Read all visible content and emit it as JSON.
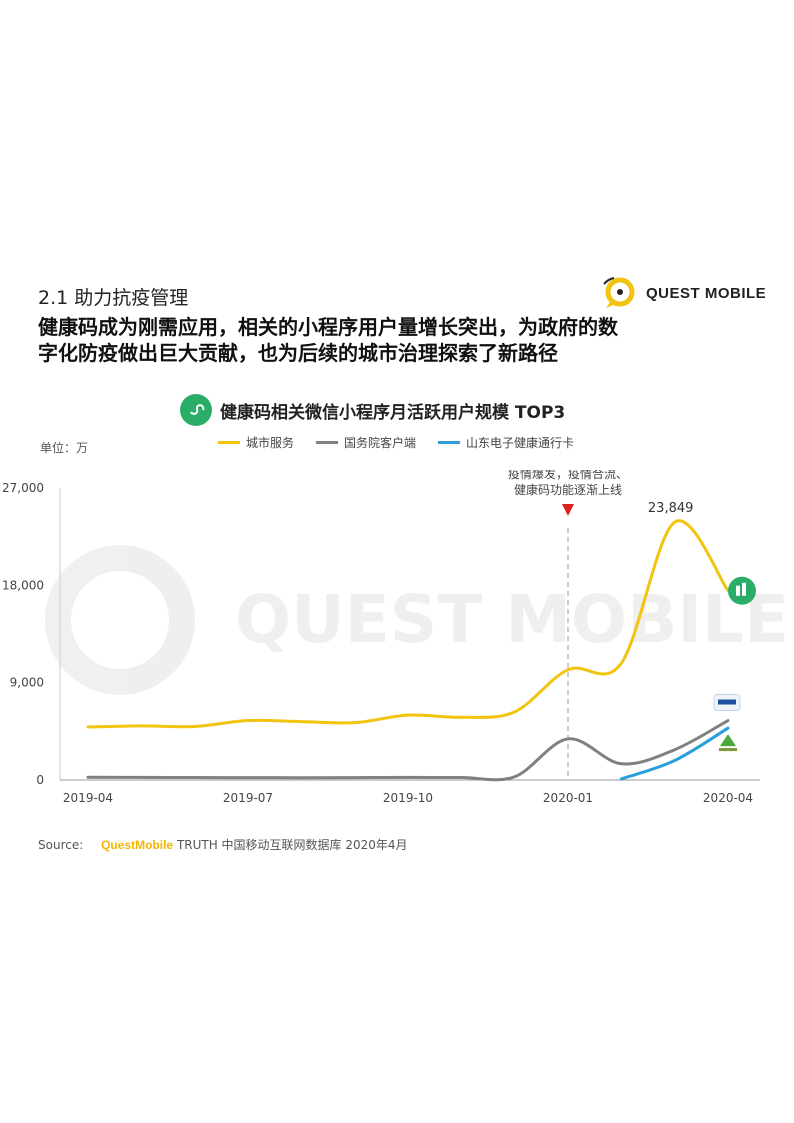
{
  "section_title": "2.1 助力抗疫管理",
  "headline": "健康码成为刚需应用，相关的小程序用户量增长突出，为政府的数字化防疫做出巨大贡献，也为后续的城市治理探索了新路径",
  "brand": {
    "name": "QUEST MOBILE",
    "watermark": "QUEST MOBILE",
    "color": "#f2c40f"
  },
  "chart_title": "健康码相关微信小程序月活跃用户规模 TOP3",
  "unit_label": "单位：万",
  "annotation": {
    "text_line1": "疫情爆发，疫情合流、",
    "text_line2": "健康码功能逐渐上线",
    "x": "2020-01"
  },
  "peak_label": "23,849",
  "source": {
    "label": "Source:",
    "brand": "QuestMobile",
    "text": "TRUTH 中国移动互联网数据库 2020年4月"
  },
  "chart_data": {
    "type": "line",
    "x": [
      "2019-04",
      "2019-05",
      "2019-06",
      "2019-07",
      "2019-08",
      "2019-09",
      "2019-10",
      "2019-11",
      "2019-12",
      "2020-01",
      "2020-02",
      "2020-03",
      "2020-04"
    ],
    "x_tick_labels": [
      "2019-04",
      "2019-07",
      "2019-10",
      "2020-01",
      "2020-04"
    ],
    "y_ticks": [
      0,
      9000,
      18000,
      27000
    ],
    "y_tick_labels": [
      "0",
      "9,000",
      "18,000",
      "27,000"
    ],
    "ylim": [
      0,
      27000
    ],
    "series": [
      {
        "name": "城市服务",
        "color": "#f2c40f",
        "values": [
          4900,
          5000,
          4950,
          5500,
          5400,
          5300,
          6000,
          5800,
          6300,
          10200,
          10800,
          23849,
          17500
        ]
      },
      {
        "name": "国务院客户端",
        "color": "#808080",
        "values": [
          250,
          240,
          230,
          220,
          210,
          220,
          240,
          230,
          300,
          3800,
          1500,
          2800,
          5500
        ]
      },
      {
        "name": "山东电子健康通行卡",
        "color": "#2b9fd9",
        "values": [
          null,
          null,
          null,
          null,
          null,
          null,
          null,
          null,
          null,
          null,
          100,
          1800,
          4800
        ]
      }
    ]
  }
}
